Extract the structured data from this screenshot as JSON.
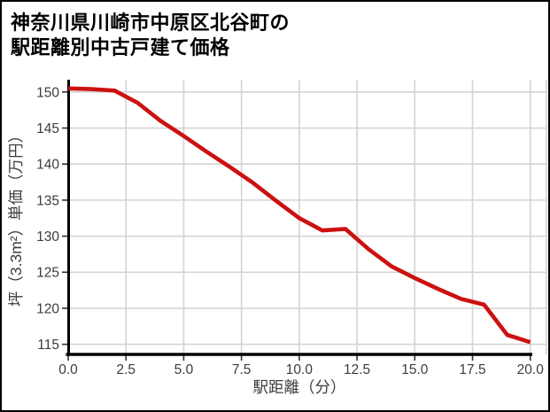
{
  "title": {
    "line1": "神奈川県川崎市中原区北谷町の",
    "line2": "駅距離別中古戸建て価格"
  },
  "chart_data": {
    "type": "line",
    "title": "神奈川県川崎市中原区北谷町の駅距離別中古戸建て価格",
    "xlabel": "駅距離（分）",
    "ylabel": "坪（3.3m²）単価（万円）",
    "x": [
      0,
      1,
      2,
      3,
      4,
      5,
      6,
      7,
      8,
      9,
      10,
      11,
      12,
      13,
      14,
      15,
      16,
      17,
      18,
      19,
      20
    ],
    "values": [
      150.5,
      150.4,
      150.2,
      148.5,
      146.0,
      143.9,
      141.7,
      139.6,
      137.4,
      134.9,
      132.5,
      130.8,
      131.0,
      128.2,
      125.8,
      124.2,
      122.7,
      121.3,
      120.5,
      116.3,
      115.3
    ],
    "xlim": [
      0,
      20.7
    ],
    "ylim": [
      113.6,
      151.7
    ],
    "xticks": [
      0.0,
      2.5,
      5.0,
      7.5,
      10.0,
      12.5,
      15.0,
      17.5,
      20.0
    ],
    "xtick_labels": [
      "0.0",
      "2.5",
      "5.0",
      "7.5",
      "10.0",
      "12.5",
      "15.0",
      "17.5",
      "20.0"
    ],
    "yticks": [
      115,
      120,
      125,
      130,
      135,
      140,
      145,
      150
    ],
    "ytick_labels": [
      "115",
      "120",
      "125",
      "130",
      "135",
      "140",
      "145",
      "150"
    ],
    "grid": true,
    "legend": "none",
    "line_color": "#cc1111",
    "grid_color": "#d4d4d4",
    "spine_color": "#000000",
    "tick_label_color": "#3c3c3c",
    "axis_label_color": "#3c3c3c"
  }
}
